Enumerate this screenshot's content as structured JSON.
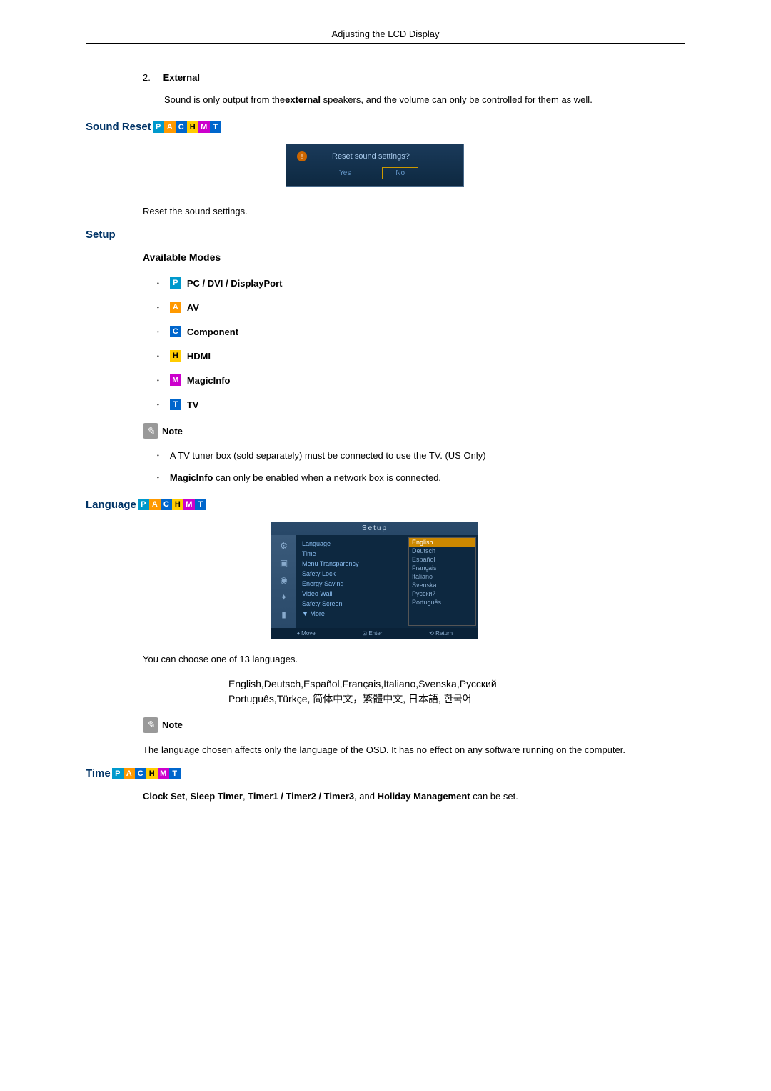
{
  "header": {
    "title": "Adjusting the LCD Display"
  },
  "external_section": {
    "number": "2.",
    "label": "External",
    "text_before": "Sound is only output from the",
    "text_bold": "external",
    "text_after": " speakers, and the volume can only be controlled for them as well."
  },
  "sound_reset": {
    "title": "Sound Reset",
    "dialog": {
      "question": "Reset sound settings?",
      "yes": "Yes",
      "no": "No"
    },
    "description": "Reset the sound settings."
  },
  "setup": {
    "title": "Setup",
    "available_modes": {
      "title": "Available Modes",
      "items": [
        {
          "badge": "P",
          "class": "badge-p",
          "label": "PC / DVI / DisplayPort"
        },
        {
          "badge": "A",
          "class": "badge-a",
          "label": "AV"
        },
        {
          "badge": "C",
          "class": "badge-c",
          "label": "Component"
        },
        {
          "badge": "H",
          "class": "badge-h",
          "label": "HDMI"
        },
        {
          "badge": "M",
          "class": "badge-m",
          "label": "MagicInfo"
        },
        {
          "badge": "T",
          "class": "badge-t",
          "label": "TV"
        }
      ]
    },
    "note_label": "Note",
    "notes": [
      {
        "text": "A TV tuner box (sold separately) must be connected to use the TV. (US Only)"
      },
      {
        "bold": "MagicInfo",
        "text": " can only be enabled when a network box is connected."
      }
    ]
  },
  "language": {
    "title": "Language",
    "menu": {
      "header": "Setup",
      "items": [
        "Language",
        "Time",
        "Menu Transparency",
        "Safety Lock",
        "Energy Saving",
        "Video Wall",
        "Safety Screen"
      ],
      "more": "▼ More",
      "dropdown": [
        "English",
        "Deutsch",
        "Español",
        "Français",
        "Italiano",
        "Svenska",
        "Русский",
        "Português"
      ],
      "footer": [
        "♦ Move",
        "⊡ Enter",
        "⟲ Return"
      ]
    },
    "description": "You can choose one of 13 languages.",
    "lang_line1": "English,Deutsch,Español,Français,Italiano,Svenska,Русский",
    "lang_line2": "Português,Türkçe, 简体中文，繁體中文, 日本語, 한국어",
    "note_text": "The language chosen affects only the language of the OSD. It has no effect on any software running on the computer."
  },
  "time": {
    "title": "Time",
    "text_parts": {
      "p1": "Clock Set",
      "p2": "Sleep Timer",
      "p3": "Timer1 / Timer2 / Timer3",
      "p4": "Holiday Management",
      "suffix": " can be set."
    }
  },
  "badges": {
    "p": "P",
    "a": "A",
    "c": "C",
    "h": "H",
    "m": "M",
    "t": "T"
  }
}
